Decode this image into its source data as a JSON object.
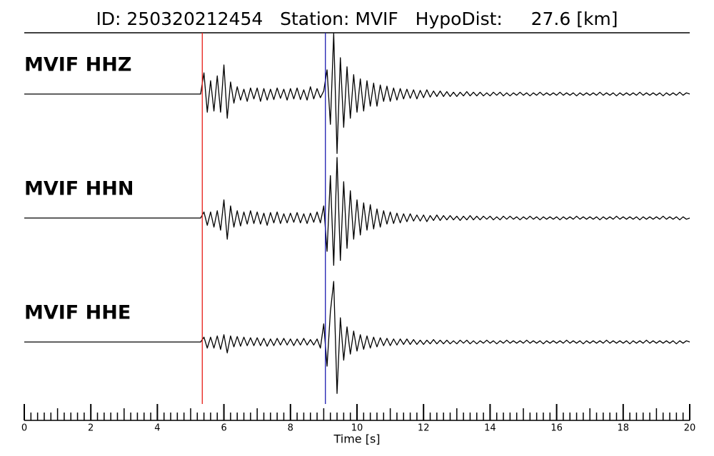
{
  "chart_data": {
    "type": "line",
    "title": "ID: 250320212454   Station: MVIF   HypoDist:     27.6 [km]",
    "x_label": "Time [s]",
    "xlim": [
      0,
      20
    ],
    "xticks": [
      0,
      2,
      4,
      6,
      8,
      10,
      12,
      14,
      16,
      18,
      20
    ],
    "xticks_minor": [
      0.2,
      0.4,
      0.6,
      0.8,
      1,
      1.2,
      1.4,
      1.6,
      1.8,
      2.2,
      2.4,
      2.6,
      2.8,
      3,
      3.2,
      3.4,
      3.6,
      3.8,
      4.2,
      4.4,
      4.6,
      4.8,
      5,
      5.2,
      5.4,
      5.6,
      5.8,
      6.2,
      6.4,
      6.6,
      6.8,
      7,
      7.2,
      7.4,
      7.6,
      7.8,
      8.2,
      8.4,
      8.6,
      8.8,
      9,
      9.2,
      9.4,
      9.6,
      9.8,
      10.2,
      10.4,
      10.6,
      10.8,
      11,
      11.2,
      11.4,
      11.6,
      11.8,
      12.2,
      12.4,
      12.6,
      12.8,
      13,
      13.2,
      13.4,
      13.6,
      13.8,
      14.2,
      14.4,
      14.6,
      14.8,
      15,
      15.2,
      15.4,
      15.6,
      15.8,
      16.2,
      16.4,
      16.6,
      16.8,
      17,
      17.2,
      17.4,
      17.6,
      17.8,
      18.2,
      18.4,
      18.6,
      18.8,
      19,
      19.2,
      19.4,
      19.6,
      19.8
    ],
    "ylim": [
      -1,
      1
    ],
    "label_color": "#4c9a0a",
    "markers": [
      {
        "x": 5.35,
        "color": "#e8201a"
      },
      {
        "x": 9.05,
        "color": "#1a1ab0"
      }
    ],
    "x": [
      0,
      5.3,
      5.4,
      5.5,
      5.6,
      5.7,
      5.8,
      5.9,
      6.0,
      6.1,
      6.2,
      6.3,
      6.4,
      6.5,
      6.6,
      6.7,
      6.8,
      6.9,
      7.0,
      7.1,
      7.2,
      7.3,
      7.4,
      7.5,
      7.6,
      7.7,
      7.8,
      7.9,
      8.0,
      8.1,
      8.2,
      8.3,
      8.4,
      8.5,
      8.6,
      8.7,
      8.8,
      8.9,
      9.0,
      9.1,
      9.2,
      9.3,
      9.4,
      9.5,
      9.6,
      9.7,
      9.8,
      9.9,
      10.0,
      10.1,
      10.2,
      10.3,
      10.4,
      10.5,
      10.6,
      10.7,
      10.8,
      10.9,
      11.0,
      11.1,
      11.2,
      11.3,
      11.4,
      11.5,
      11.6,
      11.7,
      11.8,
      11.9,
      12.0,
      12.1,
      12.2,
      12.3,
      12.4,
      12.5,
      12.6,
      12.7,
      12.8,
      12.9,
      13.0,
      13.1,
      13.2,
      13.3,
      13.4,
      13.5,
      13.6,
      13.7,
      13.8,
      13.9,
      14.0,
      14.1,
      14.2,
      14.3,
      14.4,
      14.5,
      14.6,
      14.7,
      14.8,
      14.9,
      15.0,
      15.1,
      15.2,
      15.3,
      15.4,
      15.5,
      15.6,
      15.7,
      15.8,
      15.9,
      16.0,
      16.1,
      16.2,
      16.3,
      16.4,
      16.5,
      16.6,
      16.7,
      16.8,
      16.9,
      17.0,
      17.1,
      17.2,
      17.3,
      17.4,
      17.5,
      17.6,
      17.7,
      17.8,
      17.9,
      18.0,
      18.1,
      18.2,
      18.3,
      18.4,
      18.5,
      18.6,
      18.7,
      18.8,
      18.9,
      19.0,
      19.1,
      19.2,
      19.3,
      19.4,
      19.5,
      19.6,
      19.7,
      19.8,
      19.9,
      20.0
    ],
    "series": [
      {
        "name": "MVIF HHZ",
        "color": "#000000",
        "values": [
          0,
          0,
          0.35,
          -0.3,
          0.22,
          -0.28,
          0.3,
          -0.3,
          0.48,
          -0.4,
          0.2,
          -0.15,
          0.12,
          -0.1,
          0.08,
          -0.12,
          0.1,
          -0.08,
          0.1,
          -0.12,
          0.09,
          -0.1,
          0.08,
          -0.09,
          0.1,
          -0.07,
          0.08,
          -0.1,
          0.09,
          -0.08,
          0.1,
          -0.09,
          0.07,
          -0.1,
          0.12,
          -0.08,
          0.09,
          -0.06,
          0.05,
          0.4,
          -0.5,
          1.0,
          -0.98,
          0.6,
          -0.55,
          0.45,
          -0.4,
          0.32,
          -0.3,
          0.25,
          -0.28,
          0.22,
          -0.2,
          0.18,
          -0.2,
          0.15,
          -0.12,
          0.13,
          -0.12,
          0.1,
          -0.1,
          0.09,
          -0.08,
          0.08,
          -0.07,
          0.07,
          -0.08,
          0.06,
          -0.06,
          0.07,
          -0.05,
          0.05,
          -0.04,
          0.05,
          -0.04,
          0.04,
          -0.04,
          0.03,
          -0.04,
          0.03,
          -0.03,
          0.04,
          -0.03,
          0.03,
          -0.03,
          0.03,
          -0.03,
          0.02,
          -0.03,
          0.03,
          -0.02,
          0.03,
          -0.03,
          0.02,
          -0.03,
          0.02,
          -0.02,
          0.03,
          -0.02,
          0.02,
          -0.03,
          0.02,
          -0.02,
          0.03,
          -0.02,
          0.02,
          -0.02,
          0.02,
          -0.02,
          0.03,
          -0.02,
          0.02,
          -0.02,
          0.02,
          -0.03,
          0.02,
          -0.02,
          0.02,
          -0.02,
          0.02,
          -0.02,
          0.03,
          -0.02,
          0.02,
          -0.02,
          0.02,
          -0.03,
          0.02,
          -0.02,
          0.02,
          -0.02,
          0.02,
          -0.02,
          0.03,
          -0.02,
          0.02,
          -0.02,
          0.02,
          -0.02,
          0.02,
          -0.03,
          0.02,
          -0.02,
          0.02,
          -0.02,
          0.03,
          -0.02,
          0.02,
          0
        ]
      },
      {
        "name": "MVIF HHN",
        "color": "#000000",
        "values": [
          0,
          0,
          0.1,
          -0.12,
          0.1,
          -0.15,
          0.12,
          -0.2,
          0.3,
          -0.35,
          0.2,
          -0.15,
          0.12,
          -0.13,
          0.1,
          -0.1,
          0.12,
          -0.09,
          0.1,
          -0.1,
          0.08,
          -0.12,
          0.09,
          -0.08,
          0.1,
          -0.09,
          0.07,
          -0.08,
          0.08,
          -0.07,
          0.09,
          -0.08,
          0.07,
          -0.09,
          0.08,
          -0.07,
          0.1,
          -0.08,
          0.2,
          -0.55,
          0.7,
          -0.78,
          1.0,
          -0.7,
          0.6,
          -0.5,
          0.45,
          -0.35,
          0.3,
          -0.28,
          0.25,
          -0.2,
          0.22,
          -0.18,
          0.15,
          -0.15,
          0.12,
          -0.1,
          0.1,
          -0.09,
          0.08,
          -0.08,
          0.07,
          -0.06,
          0.07,
          -0.05,
          0.05,
          -0.05,
          0.05,
          -0.06,
          0.04,
          -0.04,
          0.05,
          -0.04,
          0.04,
          -0.03,
          0.04,
          -0.03,
          0.03,
          -0.04,
          0.03,
          -0.03,
          0.04,
          -0.03,
          0.03,
          -0.03,
          0.03,
          -0.02,
          0.03,
          -0.03,
          0.02,
          -0.03,
          0.03,
          -0.02,
          0.03,
          -0.02,
          0.02,
          -0.03,
          0.02,
          -0.02,
          0.03,
          -0.02,
          0.02,
          -0.03,
          0.02,
          -0.02,
          0.02,
          -0.02,
          0.02,
          -0.03,
          0.02,
          -0.02,
          0.02,
          -0.02,
          0.03,
          -0.02,
          0.02,
          -0.02,
          0.02,
          -0.02,
          0.02,
          -0.03,
          0.02,
          -0.02,
          0.02,
          -0.02,
          0.03,
          -0.02,
          0.02,
          -0.02,
          0.02,
          -0.02,
          0.02,
          -0.03,
          0.02,
          -0.02,
          0.02,
          -0.02,
          0.02,
          -0.02,
          0.03,
          -0.02,
          0.02,
          -0.02,
          0.02,
          -0.03,
          0.02,
          -0.02,
          0
        ]
      },
      {
        "name": "MVIF HHE",
        "color": "#000000",
        "values": [
          0,
          0,
          0.08,
          -0.1,
          0.08,
          -0.1,
          0.1,
          -0.12,
          0.12,
          -0.18,
          0.1,
          -0.08,
          0.09,
          -0.07,
          0.08,
          -0.06,
          0.07,
          -0.06,
          0.07,
          -0.06,
          0.06,
          -0.07,
          0.05,
          -0.06,
          0.06,
          -0.05,
          0.06,
          -0.05,
          0.05,
          -0.06,
          0.05,
          -0.05,
          0.06,
          -0.05,
          0.04,
          -0.05,
          0.05,
          -0.1,
          0.3,
          -0.4,
          0.5,
          1.0,
          -0.85,
          0.4,
          -0.3,
          0.25,
          -0.2,
          0.18,
          -0.15,
          0.12,
          -0.12,
          0.1,
          -0.1,
          0.08,
          -0.08,
          0.07,
          -0.06,
          0.06,
          -0.06,
          0.05,
          -0.05,
          0.05,
          -0.04,
          0.05,
          -0.04,
          0.04,
          -0.04,
          0.03,
          -0.04,
          0.03,
          -0.03,
          0.04,
          -0.03,
          0.03,
          -0.03,
          0.03,
          -0.03,
          0.02,
          -0.03,
          0.03,
          -0.02,
          0.03,
          -0.03,
          0.02,
          -0.03,
          0.02,
          -0.02,
          0.03,
          -0.02,
          0.02,
          -0.03,
          0.02,
          -0.02,
          0.03,
          -0.02,
          0.02,
          -0.02,
          0.02,
          -0.02,
          0.03,
          -0.02,
          0.02,
          -0.02,
          0.02,
          -0.03,
          0.02,
          -0.02,
          0.02,
          -0.02,
          0.02,
          -0.02,
          0.03,
          -0.02,
          0.02,
          -0.02,
          0.02,
          -0.03,
          0.02,
          -0.02,
          0.02,
          -0.02,
          0.02,
          -0.02,
          0.03,
          -0.02,
          0.02,
          -0.02,
          0.02,
          -0.02,
          0.02,
          -0.03,
          0.02,
          -0.02,
          0.02,
          -0.02,
          0.03,
          -0.02,
          0.02,
          -0.02,
          0.02,
          -0.02,
          0.02,
          -0.02,
          0.02,
          -0.03,
          0.02,
          -0.02,
          0.02,
          0
        ]
      }
    ]
  }
}
